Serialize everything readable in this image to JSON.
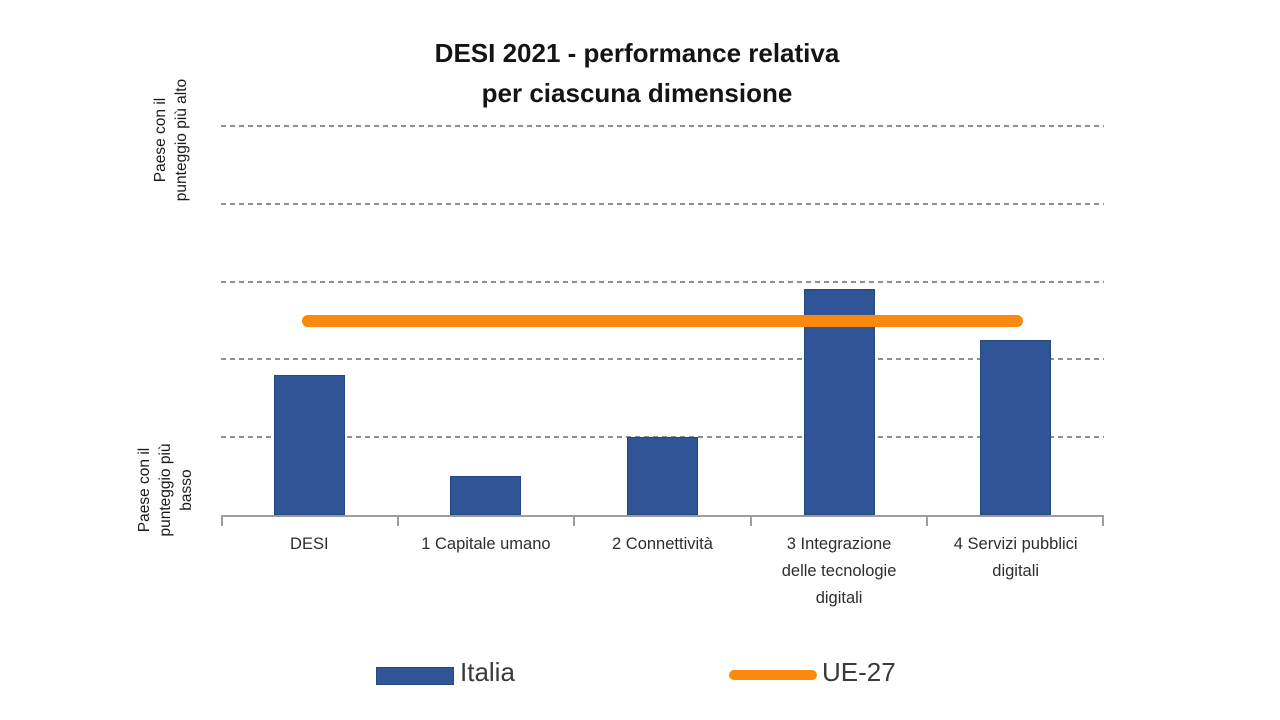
{
  "title": {
    "line1": "DESI 2021 - performance relativa",
    "line2": "per ciascuna dimensione"
  },
  "y_axis": {
    "top_label": "Paese con il\npunteggio più alto",
    "bottom_label": "Paese con il\npunteggio più\nbasso"
  },
  "legend": {
    "italia_label": "Italia",
    "ue27_label": "UE-27"
  },
  "colors": {
    "bar_fill": "#2F5597",
    "bar_border": "#24477f",
    "eu_line": "#F98A0D",
    "gridline": "#8f8f8f",
    "axis": "#9d9d9d"
  },
  "chart_data": {
    "type": "bar",
    "title": "DESI 2021 - performance relativa per ciascuna dimensione",
    "categories": [
      "DESI",
      "1 Capitale umano",
      "2 Connettività",
      "3 Integrazione\ndelle tecnologie\ndigitali",
      "4 Servizi pubblici\ndigitali"
    ],
    "series": [
      {
        "name": "Italia",
        "type": "bar",
        "color": "#2F5597",
        "values": [
          1.8,
          0.5,
          1.0,
          2.9,
          2.25
        ]
      },
      {
        "name": "UE-27",
        "type": "line",
        "color": "#F98A0D",
        "value": 2.5
      }
    ],
    "ylim": [
      0,
      5
    ],
    "gridlines_at": [
      1,
      2,
      3,
      4,
      5
    ],
    "grid_style": "dashed horizontal, no numeric tick labels",
    "ylabel_top": "Paese con il punteggio più alto",
    "ylabel_bottom": "Paese con il punteggio più basso",
    "legend_position": "bottom"
  }
}
